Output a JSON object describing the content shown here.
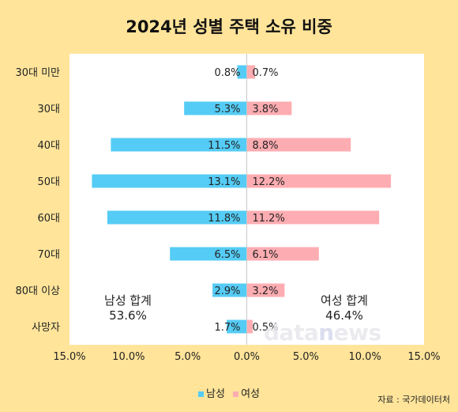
{
  "title": "2024년 성별 주택 소유 비중",
  "colors": {
    "male": "#55CCF5",
    "female": "#FDADB2",
    "background": "#FFE49A",
    "plot": "#FFFFFF"
  },
  "totals": {
    "male": {
      "label": "남성 합계",
      "value": "53.6%"
    },
    "female": {
      "label": "여성 합계",
      "value": "46.4%"
    }
  },
  "legend": {
    "male": "남성",
    "female": "여성"
  },
  "source": "자료 : 국가데이터처",
  "watermark": {
    "part1": "data",
    "part2": "n",
    "part3": "ews"
  },
  "chart_data": {
    "type": "bar",
    "orientation": "horizontal-diverging",
    "categories": [
      "30대 미만",
      "30대",
      "40대",
      "50대",
      "60대",
      "70대",
      "80대 이상",
      "사망자"
    ],
    "series": [
      {
        "name": "남성",
        "values": [
          0.8,
          5.3,
          11.5,
          13.1,
          11.8,
          6.5,
          2.9,
          1.7
        ],
        "labels": [
          "0.8%",
          "5.3%",
          "11.5%",
          "13.1%",
          "11.8%",
          "6.5%",
          "2.9%",
          "1.7%"
        ]
      },
      {
        "name": "여성",
        "values": [
          0.7,
          3.8,
          8.8,
          12.2,
          11.2,
          6.1,
          3.2,
          0.5
        ],
        "labels": [
          "0.7%",
          "3.8%",
          "8.8%",
          "12.2%",
          "11.2%",
          "6.1%",
          "3.2%",
          "0.5%"
        ]
      }
    ],
    "xlim": [
      -15,
      15
    ],
    "xticks": [
      -15,
      -10,
      -5,
      0,
      5,
      10,
      15
    ],
    "xtick_labels": [
      "15.0%",
      "10.0%",
      "5.0%",
      "0.0%",
      "5.0%",
      "10.0%",
      "15.0%"
    ],
    "grid": false,
    "legend_position": "bottom"
  }
}
